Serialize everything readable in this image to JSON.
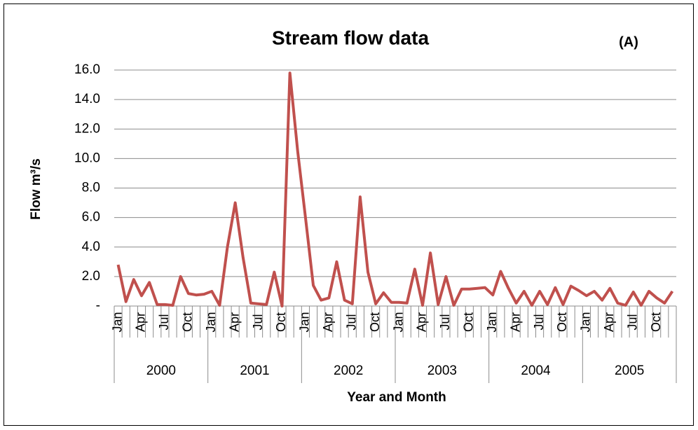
{
  "chart_data": {
    "type": "line",
    "title": "Stream flow data",
    "annotation": "(A)",
    "ylabel": "Flow m³/s",
    "xlabel": "Year and Month",
    "categories": [
      "Jan",
      null,
      null,
      "Apr",
      null,
      null,
      "Jul",
      null,
      null,
      "Oct",
      null,
      null,
      "Jan",
      null,
      null,
      "Apr",
      null,
      null,
      "Jul",
      null,
      null,
      "Oct",
      null,
      null,
      "Jan",
      null,
      null,
      "Apr",
      null,
      null,
      "Jul",
      null,
      null,
      "Oct",
      null,
      null,
      "Jan",
      null,
      null,
      "Apr",
      null,
      null,
      "Jul",
      null,
      null,
      "Oct",
      null,
      null,
      "Jan",
      null,
      null,
      "Apr",
      null,
      null,
      "Jul",
      null,
      null,
      "Oct",
      null,
      null,
      "Jan",
      null,
      null,
      "Apr",
      null,
      null,
      "Jul",
      null,
      null,
      "Oct",
      null,
      null
    ],
    "category_groups": [
      "2000",
      "2001",
      "2002",
      "2003",
      "2004",
      "2005"
    ],
    "values": [
      2.8,
      0.3,
      1.8,
      0.7,
      1.6,
      0.1,
      0.1,
      0.05,
      2.0,
      0.85,
      0.75,
      0.8,
      1.0,
      0.05,
      4.0,
      7.0,
      3.3,
      0.2,
      0.15,
      0.1,
      2.3,
      0.0,
      15.8,
      10.5,
      6.0,
      1.4,
      0.4,
      0.55,
      3.0,
      0.4,
      0.15,
      7.4,
      2.3,
      0.15,
      0.9,
      0.25,
      0.25,
      0.2,
      2.5,
      0.05,
      3.6,
      0.1,
      2.0,
      0.05,
      1.15,
      1.15,
      1.2,
      1.25,
      0.75,
      2.35,
      1.2,
      0.2,
      1.0,
      0.05,
      1.0,
      0.1,
      1.25,
      0.1,
      1.35,
      1.05,
      0.7,
      1.0,
      0.4,
      1.2,
      0.2,
      0.05,
      0.95,
      0.05,
      1.0,
      0.55,
      0.2,
      1.0
    ],
    "color": "#c0504d",
    "ylim": [
      0,
      16
    ],
    "yticks": [
      {
        "value": 0,
        "label": "-"
      },
      {
        "value": 2,
        "label": "2.0"
      },
      {
        "value": 4,
        "label": "4.0"
      },
      {
        "value": 6,
        "label": "6.0"
      },
      {
        "value": 8,
        "label": "8.0"
      },
      {
        "value": 10,
        "label": "10.0"
      },
      {
        "value": 12,
        "label": "12.0"
      },
      {
        "value": 14,
        "label": "14.0"
      },
      {
        "value": 16,
        "label": "16.0"
      }
    ],
    "grid": true
  }
}
